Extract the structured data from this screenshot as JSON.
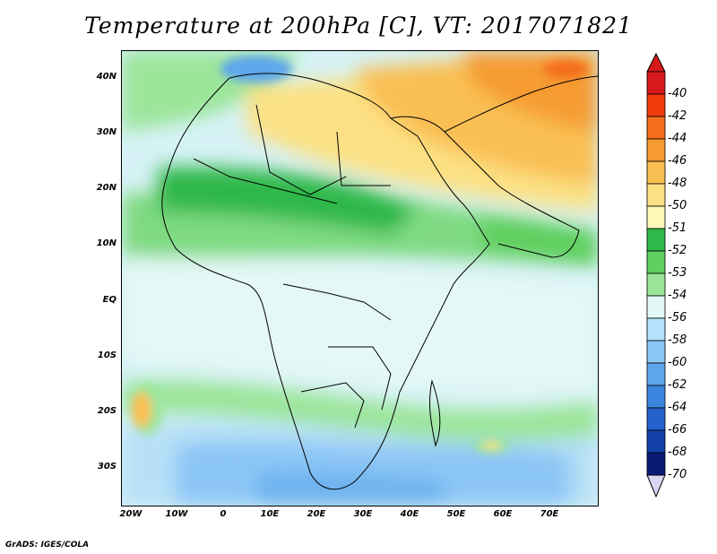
{
  "title": "Temperature at 200hPa [C], VT: 2017071821",
  "footer": "GrADS: IGES/COLA",
  "lat_labels": [
    "40N",
    "30N",
    "20N",
    "10N",
    "EQ",
    "10S",
    "20S",
    "30S"
  ],
  "lon_labels": [
    "20W",
    "10W",
    "0",
    "10E",
    "20E",
    "30E",
    "40E",
    "50E",
    "60E",
    "70E"
  ],
  "legend_labels": [
    "-40",
    "-42",
    "-44",
    "-46",
    "-48",
    "-50",
    "-51",
    "-52",
    "-53",
    "-54",
    "-56",
    "-58",
    "-60",
    "-62",
    "-64",
    "-66",
    "-68",
    "-70"
  ],
  "legend_colors": [
    "#d7191c",
    "#f03b0c",
    "#f46d1d",
    "#f59b32",
    "#f9bf52",
    "#fce184",
    "#fff7b8",
    "#2fb84a",
    "#5fcf5f",
    "#9be59a",
    "#e2f8f6",
    "#b6e3fb",
    "#8cc6f5",
    "#5fa6ec",
    "#3b84de",
    "#2461cc",
    "#1140a8",
    "#081a73"
  ],
  "colors": {
    "ocean": "#c8ecf9",
    "land_outline": "#000000"
  },
  "chart_data": {
    "type": "heatmap",
    "title": "Temperature at 200hPa [C], VT: 2017071821",
    "lon_range": [
      -22,
      80
    ],
    "lat_range": [
      -37,
      45
    ],
    "legend_placement": "right",
    "scale_levels": [
      -40,
      -42,
      -44,
      -46,
      -48,
      -50,
      -51,
      -52,
      -53,
      -54,
      -56,
      -58,
      -60,
      -62,
      -64,
      -66,
      -68,
      -70
    ]
  }
}
